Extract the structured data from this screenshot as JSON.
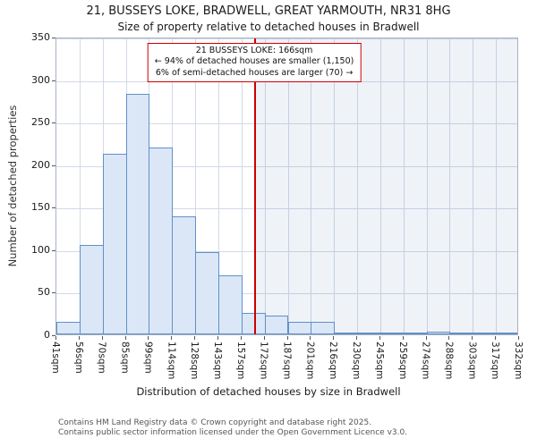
{
  "chart_data": {
    "type": "bar",
    "title": "21, BUSSEYS LOKE, BRADWELL, GREAT YARMOUTH, NR31 8HG",
    "subtitle": "Size of property relative to detached houses in Bradwell",
    "xlabel": "Distribution of detached houses by size in Bradwell",
    "ylabel": "Number of detached properties",
    "ylim": [
      0,
      350
    ],
    "yticks": [
      0,
      50,
      100,
      150,
      200,
      250,
      300,
      350
    ],
    "grid": true,
    "legend": false,
    "x_axis_min_sqm": 41,
    "x_axis_max_sqm": 332,
    "x_ticks": [
      "41sqm",
      "56sqm",
      "70sqm",
      "85sqm",
      "99sqm",
      "114sqm",
      "128sqm",
      "143sqm",
      "157sqm",
      "172sqm",
      "187sqm",
      "201sqm",
      "216sqm",
      "230sqm",
      "245sqm",
      "259sqm",
      "274sqm",
      "288sqm",
      "303sqm",
      "317sqm",
      "332sqm"
    ],
    "bin_start_sqm": [
      41,
      56,
      70,
      85,
      99,
      114,
      128,
      143,
      157,
      172,
      187,
      201,
      216,
      230,
      245,
      259,
      274,
      288,
      303,
      317
    ],
    "values": [
      15,
      105,
      212,
      283,
      220,
      139,
      97,
      69,
      25,
      22,
      15,
      15,
      2,
      1,
      1,
      2,
      3,
      2,
      1,
      2
    ],
    "marker": {
      "value_sqm": 166,
      "label": "21 BUSSEYS LOKE: 166sqm",
      "smaller_note": "← 94% of detached houses are smaller (1,150)",
      "larger_note": "6% of semi-detached houses are larger (70) →",
      "color": "#cc0000"
    },
    "colors": {
      "bar_fill": "#dbe7f7",
      "bar_border": "#6090c8",
      "grid_line": "#d2dae8",
      "shade_right_of_marker": "rgba(100,125,175,0.10)"
    }
  },
  "footer": {
    "line1": "Contains HM Land Registry data © Crown copyright and database right 2025.",
    "line2": "Contains public sector information licensed under the Open Government Licence v3.0."
  }
}
